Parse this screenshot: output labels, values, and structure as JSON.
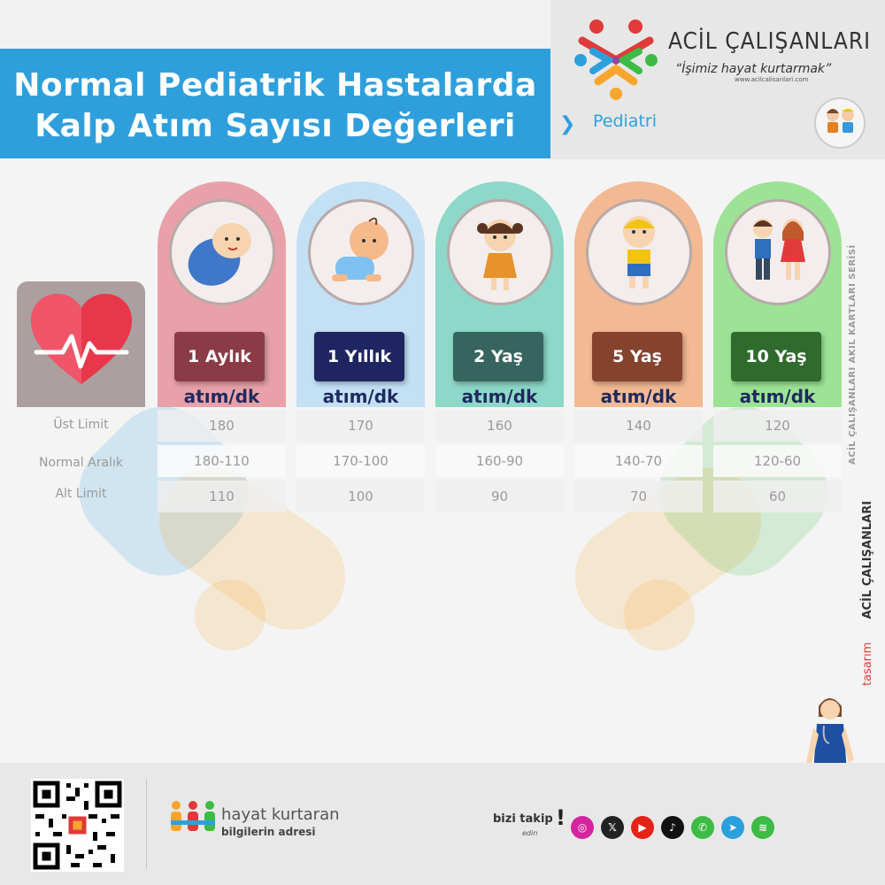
{
  "header": {
    "title_line1": "Normal Pediatrik Hastalarda",
    "title_line2": "Kalp Atım Sayısı Değerleri",
    "brand_name": "ACİL ÇALIŞANLARI",
    "brand_slogan": "“İşimiz hayat kurtarmak”",
    "brand_url": "www.acilcalisanlari.com",
    "category": "Pediatri",
    "category_arrow": "❯"
  },
  "row_labels": [
    "Üst Limit",
    "Normal Aralık",
    "Alt Limit"
  ],
  "columns": [
    {
      "age": "1 Aylık",
      "unit": "atım/dk",
      "upper": "180",
      "range": "180-110",
      "lower": "110",
      "color": "#e8a1a8",
      "label_color": "#8b3b46"
    },
    {
      "age": "1 Yıllık",
      "unit": "atım/dk",
      "upper": "170",
      "range": "170-100",
      "lower": "100",
      "color": "#c3e0f5",
      "label_color": "#1f2560"
    },
    {
      "age": "2 Yaş",
      "unit": "atım/dk",
      "upper": "160",
      "range": "160-90",
      "lower": "90",
      "color": "#8dd8c8",
      "label_color": "#36645f"
    },
    {
      "age": "5 Yaş",
      "unit": "atım/dk",
      "upper": "140",
      "range": "140-70",
      "lower": "70",
      "color": "#f2b993",
      "label_color": "#85432e"
    },
    {
      "age": "10 Yaş",
      "unit": "atım/dk",
      "upper": "120",
      "range": "120-60",
      "lower": "60",
      "color": "#9de396",
      "label_color": "#2e6b2c"
    }
  ],
  "side": {
    "series": "ACİL ÇALIŞANLARI AKIL KARTLARI SERİSİ",
    "design_prefix": "tasarım",
    "design_brand": "ACİL ÇALIŞANLARI"
  },
  "footer": {
    "hk_line1": "hayat kurtaran",
    "hk_line2": "bilgilerin adresi",
    "follow_1": "bizi takip",
    "follow_2": "edin",
    "follow_mark": "!"
  },
  "social_icons": [
    {
      "name": "instagram-icon",
      "glyph": "◎",
      "color": "#d6249f"
    },
    {
      "name": "x-icon",
      "glyph": "𝕏",
      "color": "#222222"
    },
    {
      "name": "youtube-icon",
      "glyph": "▶",
      "color": "#e62117"
    },
    {
      "name": "tiktok-icon",
      "glyph": "♪",
      "color": "#111111"
    },
    {
      "name": "whatsapp-icon",
      "glyph": "✆",
      "color": "#3dbb45"
    },
    {
      "name": "telegram-icon",
      "glyph": "➤",
      "color": "#2aa0dc"
    },
    {
      "name": "spotify-icon",
      "glyph": "≋",
      "color": "#3dbb45"
    }
  ]
}
